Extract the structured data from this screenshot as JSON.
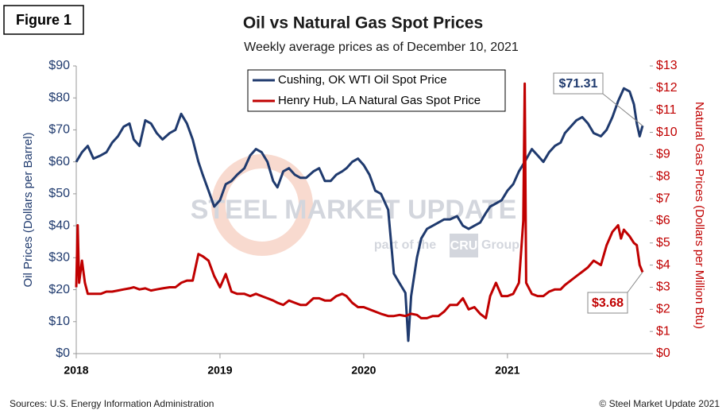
{
  "chart_data": {
    "type": "line",
    "figure_label": "Figure 1",
    "title": "Oil vs Natural Gas Spot Prices",
    "subtitle": "Weekly average prices as of December 10, 2021",
    "ylabel": "Oil Prices (Dollars per Barrel)",
    "y2label": "Natural Gas Prices (Dollars per Million Btu)",
    "source": "Sources: U.S. Energy Information Administration",
    "copyright": "© Steel Market Update 2021",
    "watermark": [
      "STEEL MARKET UPDATE",
      "part of the",
      "CRU",
      "Group"
    ],
    "legend": "top-center",
    "xlim": [
      2018,
      2021.99
    ],
    "xticks": [
      2018,
      2019,
      2020,
      2021
    ],
    "ylim": [
      0,
      90
    ],
    "yticks": [
      {
        "value": 0,
        "label": "$0"
      },
      {
        "value": 10,
        "label": "$10"
      },
      {
        "value": 20,
        "label": "$20"
      },
      {
        "value": 30,
        "label": "$30"
      },
      {
        "value": 40,
        "label": "$40"
      },
      {
        "value": 50,
        "label": "$50"
      },
      {
        "value": 60,
        "label": "$60"
      },
      {
        "value": 70,
        "label": "$70"
      },
      {
        "value": 80,
        "label": "$80"
      },
      {
        "value": 90,
        "label": "$90"
      }
    ],
    "y2lim": [
      0,
      13
    ],
    "y2ticks": [
      {
        "value": 0,
        "label": "$0"
      },
      {
        "value": 1,
        "label": "$1"
      },
      {
        "value": 2,
        "label": "$2"
      },
      {
        "value": 3,
        "label": "$3"
      },
      {
        "value": 4,
        "label": "$4"
      },
      {
        "value": 5,
        "label": "$5"
      },
      {
        "value": 6,
        "label": "$6"
      },
      {
        "value": 7,
        "label": "$7"
      },
      {
        "value": 8,
        "label": "$8"
      },
      {
        "value": 9,
        "label": "$9"
      },
      {
        "value": 10,
        "label": "$10"
      },
      {
        "value": 11,
        "label": "$11"
      },
      {
        "value": 12,
        "label": "$12"
      },
      {
        "value": 13,
        "label": "$13"
      }
    ],
    "series": [
      {
        "name": "Cushing, OK WTI Oil Spot Price",
        "color": "#1f3a6e",
        "axis": "y",
        "x": [
          2018.0,
          2018.04,
          2018.08,
          2018.12,
          2018.17,
          2018.21,
          2018.25,
          2018.29,
          2018.33,
          2018.37,
          2018.4,
          2018.44,
          2018.48,
          2018.52,
          2018.56,
          2018.6,
          2018.65,
          2018.69,
          2018.73,
          2018.77,
          2018.81,
          2018.85,
          2018.88,
          2018.92,
          2018.96,
          2019.0,
          2019.04,
          2019.08,
          2019.12,
          2019.17,
          2019.21,
          2019.25,
          2019.29,
          2019.33,
          2019.37,
          2019.4,
          2019.44,
          2019.48,
          2019.52,
          2019.56,
          2019.6,
          2019.65,
          2019.69,
          2019.73,
          2019.77,
          2019.81,
          2019.85,
          2019.88,
          2019.92,
          2019.96,
          2020.0,
          2020.04,
          2020.08,
          2020.12,
          2020.17,
          2020.21,
          2020.25,
          2020.29,
          2020.31,
          2020.33,
          2020.37,
          2020.4,
          2020.44,
          2020.48,
          2020.52,
          2020.56,
          2020.6,
          2020.65,
          2020.69,
          2020.73,
          2020.77,
          2020.81,
          2020.85,
          2020.88,
          2020.92,
          2020.96,
          2021.0,
          2021.04,
          2021.08,
          2021.12,
          2021.17,
          2021.21,
          2021.25,
          2021.29,
          2021.33,
          2021.37,
          2021.4,
          2021.44,
          2021.48,
          2021.52,
          2021.56,
          2021.6,
          2021.65,
          2021.69,
          2021.73,
          2021.77,
          2021.81,
          2021.85,
          2021.88,
          2021.9,
          2021.92,
          2021.94
        ],
        "values": [
          60,
          63,
          65,
          61,
          62,
          63,
          66,
          68,
          71,
          72,
          67,
          65,
          73,
          72,
          69,
          67,
          69,
          70,
          75,
          72,
          67,
          60,
          56,
          51,
          46,
          48,
          53,
          54,
          56,
          58,
          62,
          64,
          63,
          60,
          54,
          52,
          57,
          58,
          56,
          55,
          55,
          57,
          58,
          54,
          54,
          56,
          57,
          58,
          60,
          61,
          59,
          56,
          51,
          50,
          45,
          25,
          22,
          19,
          4,
          18,
          30,
          36,
          39,
          40,
          41,
          42,
          42,
          43,
          40,
          39,
          40,
          41,
          44,
          46,
          47,
          48,
          51,
          53,
          57,
          60,
          64,
          62,
          60,
          63,
          65,
          66,
          69,
          71,
          73,
          74,
          72,
          69,
          68,
          70,
          74,
          79,
          83,
          82,
          78,
          72,
          68,
          71.31
        ]
      },
      {
        "name": "Henry Hub, LA Natural Gas Spot Price",
        "color": "#c00000",
        "axis": "y2",
        "x": [
          2018.0,
          2018.01,
          2018.02,
          2018.04,
          2018.06,
          2018.08,
          2018.12,
          2018.17,
          2018.21,
          2018.25,
          2018.29,
          2018.33,
          2018.37,
          2018.4,
          2018.44,
          2018.48,
          2018.52,
          2018.56,
          2018.6,
          2018.65,
          2018.69,
          2018.73,
          2018.77,
          2018.81,
          2018.85,
          2018.88,
          2018.92,
          2018.96,
          2019.0,
          2019.04,
          2019.08,
          2019.12,
          2019.17,
          2019.21,
          2019.25,
          2019.29,
          2019.33,
          2019.37,
          2019.4,
          2019.44,
          2019.48,
          2019.52,
          2019.56,
          2019.6,
          2019.65,
          2019.69,
          2019.73,
          2019.77,
          2019.81,
          2019.85,
          2019.88,
          2019.92,
          2019.96,
          2020.0,
          2020.04,
          2020.08,
          2020.12,
          2020.17,
          2020.21,
          2020.25,
          2020.29,
          2020.33,
          2020.37,
          2020.4,
          2020.44,
          2020.48,
          2020.52,
          2020.56,
          2020.6,
          2020.65,
          2020.69,
          2020.73,
          2020.77,
          2020.81,
          2020.85,
          2020.88,
          2020.92,
          2020.96,
          2021.0,
          2021.04,
          2021.08,
          2021.11,
          2021.12,
          2021.13,
          2021.17,
          2021.21,
          2021.25,
          2021.29,
          2021.33,
          2021.37,
          2021.4,
          2021.44,
          2021.48,
          2021.52,
          2021.56,
          2021.6,
          2021.65,
          2021.69,
          2021.73,
          2021.77,
          2021.79,
          2021.81,
          2021.85,
          2021.88,
          2021.9,
          2021.92,
          2021.94
        ],
        "values": [
          3.0,
          5.8,
          3.2,
          4.2,
          3.2,
          2.7,
          2.7,
          2.7,
          2.8,
          2.8,
          2.85,
          2.9,
          2.95,
          3.0,
          2.9,
          2.95,
          2.85,
          2.9,
          2.95,
          3.0,
          3.0,
          3.2,
          3.3,
          3.3,
          4.5,
          4.4,
          4.2,
          3.5,
          3.0,
          3.6,
          2.8,
          2.7,
          2.7,
          2.6,
          2.7,
          2.6,
          2.5,
          2.4,
          2.3,
          2.2,
          2.4,
          2.3,
          2.2,
          2.2,
          2.5,
          2.5,
          2.4,
          2.4,
          2.6,
          2.7,
          2.6,
          2.3,
          2.1,
          2.1,
          2.0,
          1.9,
          1.8,
          1.7,
          1.7,
          1.75,
          1.7,
          1.8,
          1.75,
          1.6,
          1.6,
          1.7,
          1.7,
          1.9,
          2.2,
          2.2,
          2.5,
          2.0,
          2.1,
          1.8,
          1.6,
          2.6,
          3.2,
          2.6,
          2.6,
          2.7,
          3.2,
          6.0,
          12.2,
          3.2,
          2.7,
          2.6,
          2.6,
          2.8,
          2.9,
          2.9,
          3.1,
          3.3,
          3.5,
          3.7,
          3.9,
          4.2,
          4.0,
          4.9,
          5.5,
          5.8,
          5.2,
          5.6,
          5.3,
          5.0,
          4.9,
          4.0,
          3.68
        ]
      }
    ],
    "annotations": [
      {
        "text": "$71.31",
        "x": 2021.94,
        "y": 71.31,
        "axis": "y"
      },
      {
        "text": "$3.68",
        "x": 2021.94,
        "y": 3.68,
        "axis": "y2"
      }
    ]
  }
}
